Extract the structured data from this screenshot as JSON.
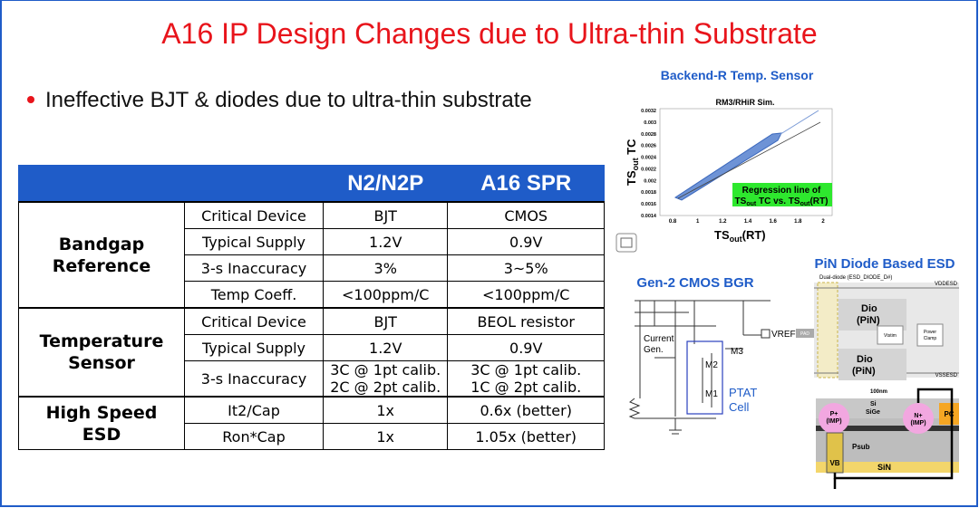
{
  "title": "A16 IP Design Changes due to Ultra-thin Substrate",
  "bullet": "Ineffective BJT & diodes due to ultra-thin substrate",
  "table": {
    "header": [
      "N2/N2P",
      "A16 SPR"
    ],
    "groups": [
      {
        "name": "Bandgap Reference",
        "rows": [
          {
            "item": "Critical Device",
            "cells": [
              [
                "BJT"
              ],
              [
                "CMOS"
              ]
            ]
          },
          {
            "item": "Typical Supply",
            "cells": [
              [
                "1.2V"
              ],
              [
                "0.9V"
              ]
            ]
          },
          {
            "item": "3-s Inaccuracy",
            "cells": [
              [
                "3%"
              ],
              [
                "3~5%"
              ]
            ]
          },
          {
            "item": "Temp Coeff.",
            "cells": [
              [
                "<100ppm/C"
              ],
              [
                "<100ppm/C"
              ]
            ]
          }
        ]
      },
      {
        "name": "Temperature Sensor",
        "rows": [
          {
            "item": "Critical Device",
            "cells": [
              [
                "BJT"
              ],
              [
                "BEOL resistor"
              ]
            ]
          },
          {
            "item": "Typical Supply",
            "cells": [
              [
                "1.2V"
              ],
              [
                "0.9V"
              ]
            ]
          },
          {
            "item": "3-s Inaccuracy",
            "cells": [
              [
                "3C @ 1pt calib.",
                "2C @ 2pt calib."
              ],
              [
                "3C @ 1pt calib.",
                "1C @ 2pt calib."
              ]
            ]
          }
        ]
      },
      {
        "name": "High Speed ESD",
        "rows": [
          {
            "item": "It2/Cap",
            "cells": [
              [
                "1x"
              ],
              [
                "0.6x (better)"
              ]
            ]
          },
          {
            "item": "Ron*Cap",
            "cells": [
              [
                "1x"
              ],
              [
                "1.05x (better)"
              ]
            ]
          }
        ]
      }
    ]
  },
  "sensor": {
    "title": "Backend-R Temp. Sensor",
    "subtitle": "RM3/RHiR Sim.",
    "y_label": {
      "main": "TS",
      "sub": "out",
      "rest": " TC"
    },
    "x_label": {
      "main": "TS",
      "sub": "out",
      "rest": "(RT)"
    },
    "yticks": [
      "0.0032",
      "0.003",
      "0.0028",
      "0.0026",
      "0.0024",
      "0.0022",
      "0.002",
      "0.0018",
      "0.0016",
      "0.0014"
    ],
    "xticks": [
      "0.8",
      "1",
      "1.2",
      "1.4",
      "1.6",
      "1.8",
      "2"
    ],
    "annotation": {
      "line1": "Regression line of",
      "a": "TS",
      "a_sub": "out",
      "b": " TC vs. TS",
      "b_sub": "out",
      "c": "(RT)"
    }
  },
  "bgr": {
    "title": "Gen-2 CMOS BGR",
    "current_gen": [
      "Current",
      "Gen."
    ],
    "m3": "M3",
    "vref": "VREF",
    "m2": "M2",
    "m1": "M1",
    "cell": [
      "PTAT",
      "Cell"
    ]
  },
  "esd": {
    "title": "PiN Diode Based ESD",
    "caption": "Dual-diode (ESD_DIODE_D#)",
    "vdd": "VDDESD",
    "vss": "VSSESD",
    "diode_top": [
      "Dio",
      "(PiN)"
    ],
    "diode_bottom": [
      "Dio",
      "(PiN)"
    ],
    "pad": "PAD",
    "vtstim": "Vtstim",
    "clamp": [
      "Power",
      "Clamp"
    ],
    "width": "100nm",
    "si": "Si",
    "sige": "SiGe",
    "p_plus": [
      "P+",
      "(IMP)"
    ],
    "n_plus": [
      "N+",
      "(IMP)"
    ],
    "pc": "PC",
    "psub": "Psub",
    "vb": "VB",
    "sin": "SiN"
  }
}
